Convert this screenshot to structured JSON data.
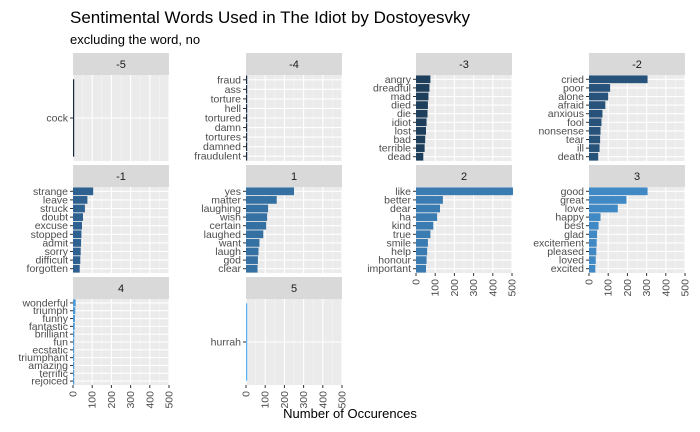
{
  "chart_data": {
    "type": "bar",
    "orientation": "horizontal",
    "facet_by": "sentiment score",
    "title": "Sentimental Words Used in The Idiot by Dostoyesvky",
    "subtitle": "excluding the word, no",
    "xlabel": "Number of Occurences",
    "ylabel": "",
    "xlim": [
      0,
      500
    ],
    "xticks": [
      "0",
      "100",
      "200",
      "300",
      "400",
      "500"
    ],
    "grid": true,
    "facets": [
      {
        "label": "-5",
        "color": "#132b43",
        "categories": [
          "cock"
        ],
        "values": [
          1
        ]
      },
      {
        "label": "-4",
        "color": "#132b43",
        "categories": [
          "fraud",
          "ass",
          "torture",
          "hell",
          "tortured",
          "damn",
          "tortures",
          "damned",
          "fraudulent"
        ],
        "values": [
          4,
          3,
          3,
          3,
          3,
          2,
          2,
          2,
          1
        ]
      },
      {
        "label": "-3",
        "color": "#1d3f5c",
        "categories": [
          "angry",
          "dreadful",
          "mad",
          "died",
          "die",
          "idiot",
          "lost",
          "bad",
          "terrible",
          "dead"
        ],
        "values": [
          75,
          70,
          65,
          62,
          60,
          55,
          52,
          48,
          45,
          38
        ]
      },
      {
        "label": "-2",
        "color": "#27527a",
        "categories": [
          "cried",
          "poor",
          "alone",
          "afraid",
          "anxious",
          "fool",
          "nonsense",
          "tear",
          "ill",
          "death"
        ],
        "values": [
          305,
          110,
          100,
          85,
          70,
          65,
          60,
          58,
          55,
          48
        ]
      },
      {
        "label": "-1",
        "color": "#2e6090",
        "categories": [
          "strange",
          "leave",
          "struck",
          "doubt",
          "excuse",
          "stopped",
          "admit",
          "sorry",
          "difficult",
          "forgotten"
        ],
        "values": [
          105,
          75,
          62,
          52,
          47,
          44,
          42,
          40,
          38,
          35
        ]
      },
      {
        "label": "1",
        "color": "#3570a2",
        "categories": [
          "yes",
          "matter",
          "laughing",
          "wish",
          "certain",
          "laughed",
          "want",
          "laugh",
          "god",
          "clear"
        ],
        "values": [
          250,
          160,
          115,
          110,
          105,
          90,
          70,
          65,
          62,
          60
        ]
      },
      {
        "label": "2",
        "color": "#3a7bb1",
        "categories": [
          "like",
          "better",
          "dear",
          "ha",
          "kind",
          "true",
          "smile",
          "help",
          "honour",
          "important"
        ],
        "values": [
          505,
          140,
          125,
          110,
          90,
          75,
          62,
          58,
          55,
          52
        ]
      },
      {
        "label": "3",
        "color": "#4189c4",
        "categories": [
          "good",
          "great",
          "love",
          "happy",
          "best",
          "glad",
          "excitement",
          "pleased",
          "loved",
          "excited"
        ],
        "values": [
          305,
          195,
          150,
          60,
          50,
          42,
          40,
          38,
          35,
          33
        ]
      },
      {
        "label": "4",
        "color": "#4a99d6",
        "categories": [
          "wonderful",
          "triumph",
          "funny",
          "fantastic",
          "brilliant",
          "fun",
          "ecstatic",
          "triumphant",
          "amazing",
          "terrific",
          "rejoiced"
        ],
        "values": [
          14,
          12,
          10,
          9,
          7,
          6,
          5,
          4,
          3,
          2,
          1
        ]
      },
      {
        "label": "5",
        "color": "#56b1f7",
        "categories": [
          "hurrah"
        ],
        "values": [
          1
        ]
      }
    ]
  }
}
